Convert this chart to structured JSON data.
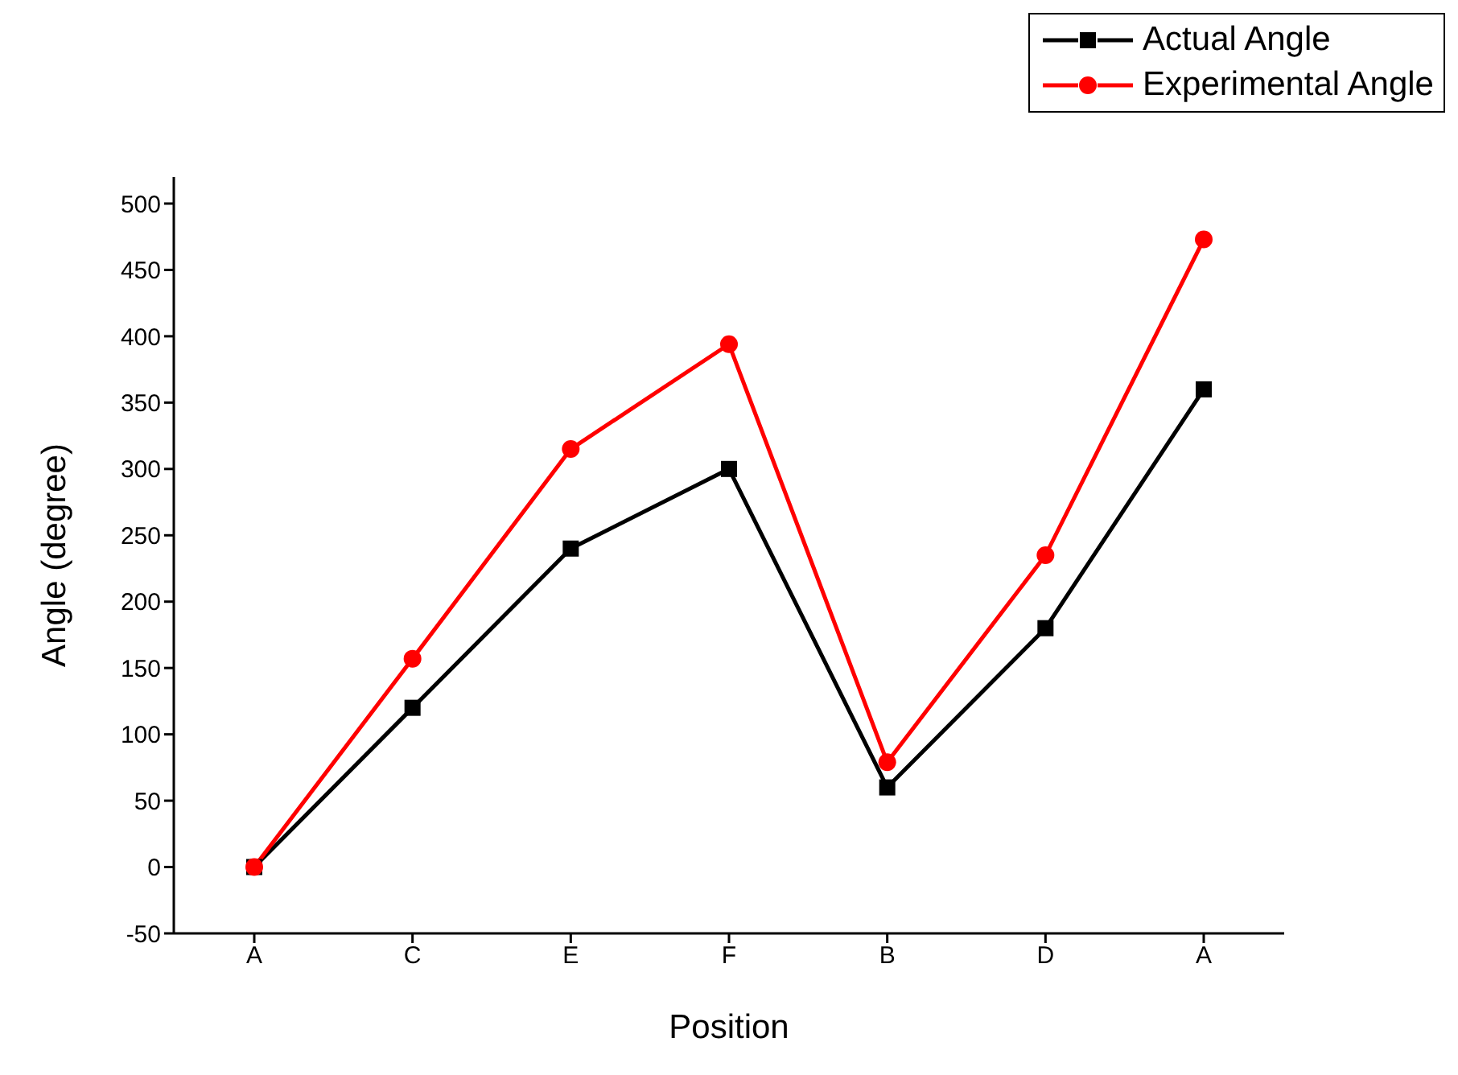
{
  "chart_data": {
    "type": "line",
    "xlabel": "Position",
    "ylabel": "Angle (degree)",
    "categories": [
      "A",
      "C",
      "E",
      "F",
      "B",
      "D",
      "A"
    ],
    "series": [
      {
        "name": "Actual Angle",
        "color": "#000000",
        "marker": "square",
        "values": [
          0,
          120,
          240,
          300,
          60,
          180,
          360
        ]
      },
      {
        "name": "Experimental Angle",
        "color": "#ff0000",
        "marker": "circle",
        "values": [
          0,
          157,
          315,
          394,
          79,
          235,
          473
        ]
      }
    ],
    "ylim": [
      -50,
      520
    ],
    "yticks": [
      -50,
      0,
      50,
      100,
      150,
      200,
      250,
      300,
      350,
      400,
      450,
      500
    ],
    "legend": "top right",
    "grid": false,
    "line_style": "solid"
  }
}
